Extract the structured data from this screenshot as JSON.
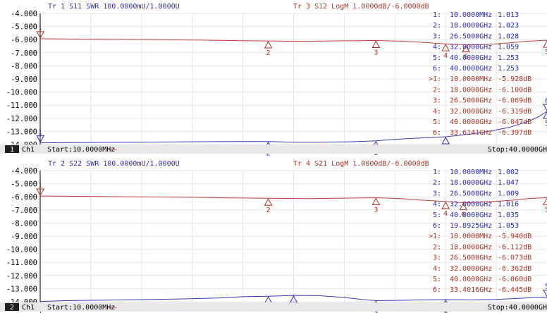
{
  "colors": {
    "blue": "#2a2ac0",
    "red": "#b03020",
    "black": "#000000",
    "grid": "#e6e6e6",
    "bar": "#e8e8e8",
    "trace_red": "#c04040",
    "trace_blue": "#3a3ab4"
  },
  "y_ticks": [
    "-4.000",
    "-5.000",
    "-6.000",
    "-7.000",
    "-8.000",
    "-9.000",
    "-10.000",
    "-11.000",
    "-12.000",
    "-13.000",
    "-14.000"
  ],
  "channels": [
    {
      "id": "1",
      "ch_label": "Ch1",
      "start": "Start:10.0000MHz",
      "stop": "Stop:40.0000GH",
      "dash": "——",
      "trace_a_header": "Tr 1  S11 SWR 100.0000mU/1.0000U",
      "trace_b_header": "Tr 3  S12 LogM 1.0000dB/-6.0000dB",
      "marker_table": [
        {
          "idx": "1:",
          "freq": "10.0000MHz",
          "val": "1.013",
          "trace": "a"
        },
        {
          "idx": "2:",
          "freq": "18.0000GHz",
          "val": "1.023",
          "trace": "a"
        },
        {
          "idx": "3:",
          "freq": "26.5000GHz",
          "val": "1.028",
          "trace": "a"
        },
        {
          "idx": "4:",
          "freq": "32.0000GHz",
          "val": "1.059",
          "trace": "a"
        },
        {
          "idx": "5:",
          "freq": "40.0000GHz",
          "val": "1.253",
          "trace": "a"
        },
        {
          "idx": "6:",
          "freq": "40.0000GHz",
          "val": "1.253",
          "trace": "a"
        },
        {
          "idx": ">1:",
          "freq": "10.0000MHz",
          "val": "-5.928dB",
          "trace": "b"
        },
        {
          "idx": "2:",
          "freq": "18.0000GHz",
          "val": "-6.100dB",
          "trace": "b"
        },
        {
          "idx": "3:",
          "freq": "26.5000GHz",
          "val": "-6.069dB",
          "trace": "b"
        },
        {
          "idx": "4:",
          "freq": "32.0000GHz",
          "val": "-6.319dB",
          "trace": "b"
        },
        {
          "idx": "5:",
          "freq": "40.0000GHz",
          "val": "-6.047dB",
          "trace": "b"
        },
        {
          "idx": "6:",
          "freq": "33.6141GHz",
          "val": "-6.397dB",
          "trace": "b"
        }
      ],
      "trace_b_points": [
        [
          0.01,
          -5.93
        ],
        [
          3,
          -5.96
        ],
        [
          6,
          -5.98
        ],
        [
          9,
          -6.0
        ],
        [
          12,
          -6.03
        ],
        [
          15,
          -6.07
        ],
        [
          18,
          -6.1
        ],
        [
          21,
          -6.13
        ],
        [
          24,
          -6.09
        ],
        [
          26.5,
          -6.07
        ],
        [
          28.5,
          -6.12
        ],
        [
          30,
          -6.2
        ],
        [
          32,
          -6.32
        ],
        [
          33.6,
          -6.4
        ],
        [
          35,
          -6.38
        ],
        [
          37,
          -6.25
        ],
        [
          38.5,
          -6.12
        ],
        [
          40,
          -6.05
        ]
      ],
      "trace_a_points": [
        [
          0.01,
          -13.87
        ],
        [
          2,
          -13.86
        ],
        [
          5,
          -13.84
        ],
        [
          8,
          -13.82
        ],
        [
          11,
          -13.8
        ],
        [
          14,
          -13.78
        ],
        [
          16,
          -13.77
        ],
        [
          18,
          -13.77
        ],
        [
          20,
          -13.82
        ],
        [
          22,
          -13.83
        ],
        [
          24.5,
          -13.79
        ],
        [
          26.5,
          -13.72
        ],
        [
          28,
          -13.6
        ],
        [
          30,
          -13.5
        ],
        [
          32,
          -13.41
        ],
        [
          34,
          -13.2
        ],
        [
          35.5,
          -12.98
        ],
        [
          37,
          -12.7
        ],
        [
          38.5,
          -12.25
        ],
        [
          39.3,
          -11.9
        ],
        [
          40,
          -11.47
        ]
      ],
      "markers_b": [
        {
          "label": "1",
          "x": 0.01,
          "y": -5.93,
          "below": false
        },
        {
          "label": "2",
          "x": 18,
          "y": -6.1,
          "below": true
        },
        {
          "label": "3",
          "x": 26.5,
          "y": -6.07,
          "below": true
        },
        {
          "label": "4",
          "x": 32,
          "y": -6.32,
          "below": true
        },
        {
          "label": "6",
          "x": 33.6,
          "y": -6.4,
          "below": true
        },
        {
          "label": "5",
          "x": 40,
          "y": -6.05,
          "below": true
        }
      ],
      "markers_a": [
        {
          "label": "1",
          "x": 0.01,
          "y": -13.87,
          "below": false
        },
        {
          "label": "2",
          "x": 18,
          "y": -13.77,
          "below": true
        },
        {
          "label": "3",
          "x": 26.5,
          "y": -13.72,
          "below": true
        },
        {
          "label": "4",
          "x": 32,
          "y": -13.41,
          "below": true
        },
        {
          "label": "6",
          "x": 40,
          "y": -11.47,
          "below": false
        },
        {
          "label": "5",
          "x": 40,
          "y": -11.47,
          "below": true
        }
      ]
    },
    {
      "id": "2",
      "ch_label": "Ch1",
      "start": "Start:10.0000MHz",
      "stop": "Stop:40.0000GH",
      "dash": "——",
      "trace_a_header": "Tr 2  S22 SWR 100.0000mU/1.0000U",
      "trace_b_header": "Tr 4  S21 LogM 1.0000dB/-6.0000dB",
      "marker_table": [
        {
          "idx": "1:",
          "freq": "10.0000MHz",
          "val": "1.002",
          "trace": "a"
        },
        {
          "idx": "2:",
          "freq": "18.0000GHz",
          "val": "1.047",
          "trace": "a"
        },
        {
          "idx": "3:",
          "freq": "26.5000GHz",
          "val": "1.009",
          "trace": "a"
        },
        {
          "idx": "4:",
          "freq": "32.0000GHz",
          "val": "1.016",
          "trace": "a"
        },
        {
          "idx": "5:",
          "freq": "40.0000GHz",
          "val": "1.035",
          "trace": "a"
        },
        {
          "idx": "6:",
          "freq": "19.8925GHz",
          "val": "1.053",
          "trace": "a"
        },
        {
          "idx": ">1:",
          "freq": "10.0000MHz",
          "val": "-5.940dB",
          "trace": "b"
        },
        {
          "idx": "2:",
          "freq": "18.0000GHz",
          "val": "-6.112dB",
          "trace": "b"
        },
        {
          "idx": "3:",
          "freq": "26.5000GHz",
          "val": "-6.073dB",
          "trace": "b"
        },
        {
          "idx": "4:",
          "freq": "32.0000GHz",
          "val": "-6.362dB",
          "trace": "b"
        },
        {
          "idx": "5:",
          "freq": "40.0000GHz",
          "val": "-6.060dB",
          "trace": "b"
        },
        {
          "idx": "6:",
          "freq": "33.4016GHz",
          "val": "-6.445dB",
          "trace": "b"
        }
      ],
      "trace_b_points": [
        [
          0.01,
          -5.94
        ],
        [
          3,
          -5.96
        ],
        [
          6,
          -5.99
        ],
        [
          9,
          -6.01
        ],
        [
          12,
          -6.04
        ],
        [
          15,
          -6.08
        ],
        [
          18,
          -6.11
        ],
        [
          21,
          -6.14
        ],
        [
          24,
          -6.1
        ],
        [
          26.5,
          -6.07
        ],
        [
          28.5,
          -6.14
        ],
        [
          30,
          -6.24
        ],
        [
          32,
          -6.36
        ],
        [
          33.4,
          -6.45
        ],
        [
          35,
          -6.4
        ],
        [
          37,
          -6.28
        ],
        [
          38.5,
          -6.14
        ],
        [
          40,
          -6.06
        ]
      ],
      "trace_a_points": [
        [
          0.01,
          -13.98
        ],
        [
          2,
          -13.92
        ],
        [
          5,
          -13.88
        ],
        [
          8,
          -13.84
        ],
        [
          11,
          -13.79
        ],
        [
          14,
          -13.72
        ],
        [
          16,
          -13.62
        ],
        [
          18,
          -13.58
        ],
        [
          20,
          -13.52
        ],
        [
          22,
          -13.54
        ],
        [
          24,
          -13.68
        ],
        [
          25.5,
          -13.84
        ],
        [
          26.5,
          -13.92
        ],
        [
          28,
          -13.9
        ],
        [
          30,
          -13.86
        ],
        [
          32,
          -13.84
        ],
        [
          34,
          -13.86
        ],
        [
          36,
          -13.82
        ],
        [
          38,
          -13.73
        ],
        [
          39.3,
          -13.66
        ],
        [
          40,
          -13.65
        ]
      ],
      "markers_b": [
        {
          "label": "1",
          "x": 0.01,
          "y": -5.94,
          "below": false
        },
        {
          "label": "2",
          "x": 18,
          "y": -6.11,
          "below": true
        },
        {
          "label": "3",
          "x": 26.5,
          "y": -6.07,
          "below": true
        },
        {
          "label": "4",
          "x": 32,
          "y": -6.36,
          "below": true
        },
        {
          "label": "6",
          "x": 33.4,
          "y": -6.45,
          "below": true
        },
        {
          "label": "5",
          "x": 40,
          "y": -6.06,
          "below": true
        }
      ],
      "markers_a": [
        {
          "label": "1",
          "x": 0.01,
          "y": -13.98,
          "below": true
        },
        {
          "label": "2",
          "x": 18,
          "y": -13.58,
          "below": true
        },
        {
          "label": "6",
          "x": 20,
          "y": -13.52,
          "below": true
        },
        {
          "label": "3",
          "x": 26.5,
          "y": -13.92,
          "below": true
        },
        {
          "label": "4",
          "x": 32,
          "y": -13.84,
          "below": true
        },
        {
          "label": "5",
          "x": 40,
          "y": -13.65,
          "below": false
        }
      ]
    }
  ]
}
